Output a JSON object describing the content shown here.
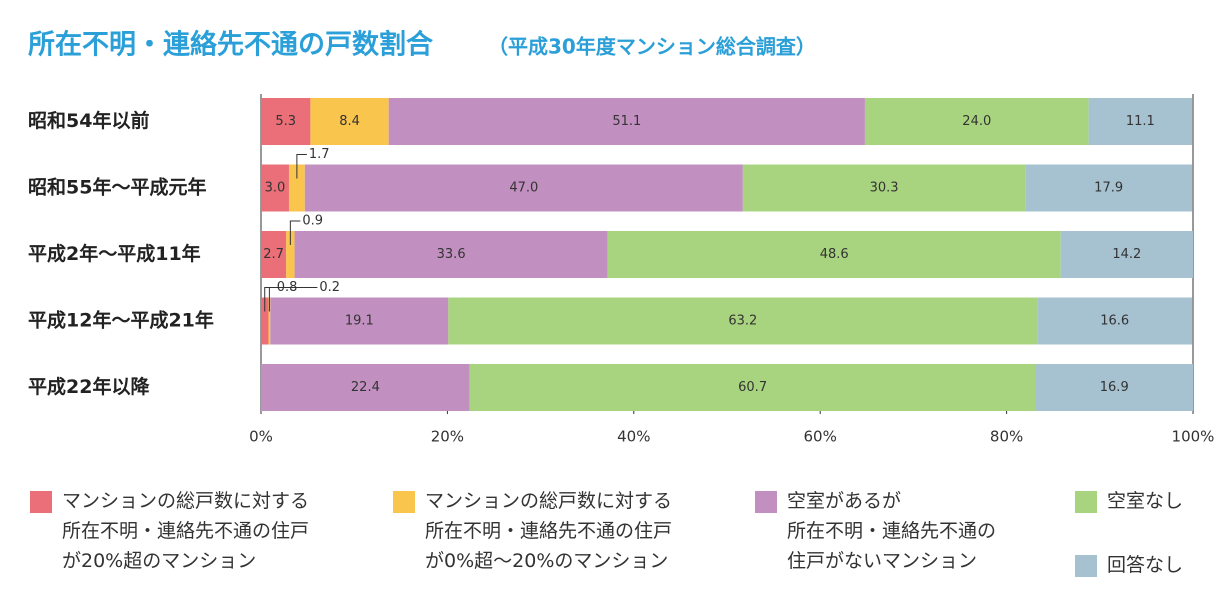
{
  "chart_data": {
    "type": "stacked-bar-horizontal",
    "title": "所在不明・連絡先不通の戸数割合",
    "subtitle": "（平成30年度マンション総合調査）",
    "categories": [
      "昭和54年以前",
      "昭和55年～平成元年",
      "平成2年～平成11年",
      "平成12年～平成21年",
      "平成22年以降"
    ],
    "series": [
      {
        "name": "マンションの総戸数に対する\n所在不明・連絡先不通の住戸\nが20%超のマンション",
        "color": "#ea6f78",
        "values": [
          5.3,
          3.0,
          2.7,
          0.8,
          null
        ],
        "value_labels": [
          "5.3",
          "3.0",
          "2.7",
          "0.8",
          null
        ]
      },
      {
        "name": "マンションの総戸数に対する\n所在不明・連絡先不通の住戸\nが0%超～20%のマンション",
        "color": "#fac54d",
        "values": [
          8.4,
          1.7,
          0.9,
          0.2,
          null
        ],
        "value_labels": [
          "8.4",
          "1.7",
          "0.9",
          "0.2",
          null
        ]
      },
      {
        "name": "空室があるが\n所在不明・連絡先不通の\n住戸がないマンション",
        "color": "#c290c0",
        "values": [
          51.1,
          47.0,
          33.6,
          19.1,
          22.4
        ],
        "value_labels": [
          "51.1",
          "47.0",
          "33.6",
          "19.1",
          "22.4"
        ]
      },
      {
        "name": "空室なし",
        "color": "#a9d47f",
        "values": [
          24.0,
          30.3,
          48.6,
          63.2,
          60.7
        ],
        "value_labels": [
          "24.0",
          "30.3",
          "48.6",
          "63.2",
          "60.7"
        ]
      },
      {
        "name": "回答なし",
        "color": "#a6c1d0",
        "values": [
          11.1,
          17.9,
          14.2,
          16.6,
          16.9
        ],
        "value_labels": [
          "11.1",
          "17.9",
          "14.2",
          "16.6",
          "16.9"
        ]
      }
    ],
    "xlim": [
      0,
      100
    ],
    "xticks": [
      {
        "value": 0,
        "label": "0%"
      },
      {
        "value": 20,
        "label": "20%"
      },
      {
        "value": 40,
        "label": "40%"
      },
      {
        "value": 60,
        "label": "60%"
      },
      {
        "value": 80,
        "label": "80%"
      },
      {
        "value": 100,
        "label": "100%"
      }
    ],
    "grid": false
  }
}
